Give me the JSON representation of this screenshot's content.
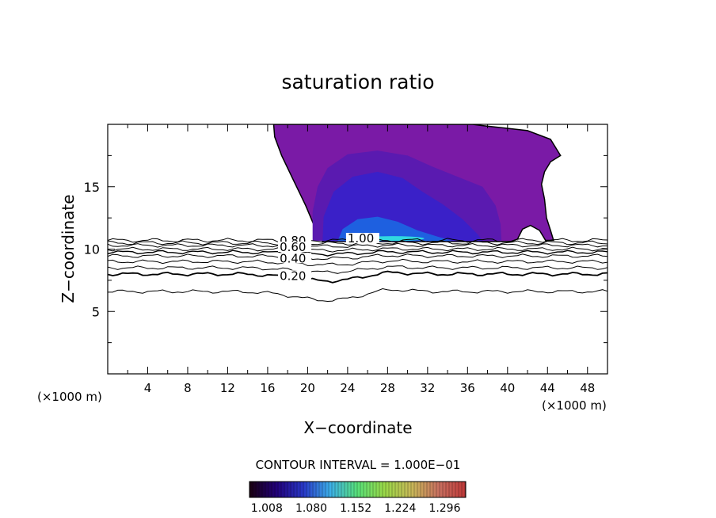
{
  "chart_data": {
    "type": "contour",
    "title": "saturation ratio",
    "xlabel": "X−coordinate",
    "ylabel": "Z−coordinate",
    "x_unit_left": "(×1000 m)",
    "x_unit_right": "(×1000 m)",
    "xlim": [
      0,
      50
    ],
    "ylim": [
      0,
      20
    ],
    "x_ticks": [
      "4",
      "8",
      "12",
      "16",
      "20",
      "24",
      "28",
      "32",
      "36",
      "40",
      "44",
      "48"
    ],
    "x_tick_values": [
      4,
      8,
      12,
      16,
      20,
      24,
      28,
      32,
      36,
      40,
      44,
      48
    ],
    "y_ticks": [
      "5",
      "10",
      "15"
    ],
    "y_tick_values": [
      5,
      10,
      15
    ],
    "contour_labels": [
      {
        "text": "0.80",
        "x": 17.2,
        "z": 10.4
      },
      {
        "text": "0.60",
        "x": 17.2,
        "z": 9.9
      },
      {
        "text": "0.40",
        "x": 17.2,
        "z": 9.0
      },
      {
        "text": "0.20",
        "x": 17.2,
        "z": 7.6
      },
      {
        "text": "1.00",
        "x": 24.0,
        "z": 10.6
      }
    ],
    "contour_interval_text": "CONTOUR INTERVAL = 1.000E−01",
    "colorbar": {
      "tick_labels": [
        "1.008",
        "1.080",
        "1.152",
        "1.224",
        "1.296"
      ],
      "tick_values": [
        1.008,
        1.08,
        1.152,
        1.224,
        1.296
      ],
      "range": [
        0.98,
        1.33
      ],
      "colors": [
        "#1a0010",
        "#22007a",
        "#2838c8",
        "#3cb0e8",
        "#58e078",
        "#9ad848",
        "#c8b858",
        "#c87060",
        "#c03838"
      ]
    },
    "fill_colors": {
      "outer": "#7a1aa6",
      "mid": "#5a1ab0",
      "inner": "#3a20c8",
      "core": "#1e60e0",
      "peak": "#30d8e0"
    }
  }
}
